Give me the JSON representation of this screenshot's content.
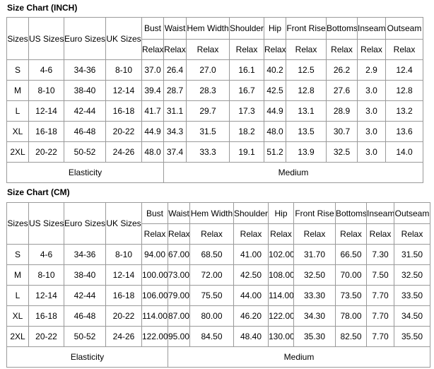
{
  "tables": [
    {
      "title": "Size Chart (INCH)",
      "headers": [
        "Sizes",
        "US Sizes",
        "Euro Sizes",
        "UK Sizes"
      ],
      "measures": [
        "Bust",
        "Waist",
        "Hem Width",
        "Shoulder",
        "Hip",
        "Front Rise",
        "Bottoms",
        "Inseam",
        "Outseam"
      ],
      "subheaders": [
        "Relax",
        "Relax",
        "Relax",
        "Relax",
        "Relax",
        "Relax",
        "Relax",
        "Relax",
        "Relax"
      ],
      "rows": [
        [
          "S",
          "4-6",
          "34-36",
          "8-10",
          "37.0",
          "26.4",
          "27.0",
          "16.1",
          "40.2",
          "12.5",
          "26.2",
          "2.9",
          "12.4"
        ],
        [
          "M",
          "8-10",
          "38-40",
          "12-14",
          "39.4",
          "28.7",
          "28.3",
          "16.7",
          "42.5",
          "12.8",
          "27.6",
          "3.0",
          "12.8"
        ],
        [
          "L",
          "12-14",
          "42-44",
          "16-18",
          "41.7",
          "31.1",
          "29.7",
          "17.3",
          "44.9",
          "13.1",
          "28.9",
          "3.0",
          "13.2"
        ],
        [
          "XL",
          "16-18",
          "46-48",
          "20-22",
          "44.9",
          "34.3",
          "31.5",
          "18.2",
          "48.0",
          "13.5",
          "30.7",
          "3.0",
          "13.6"
        ],
        [
          "2XL",
          "20-22",
          "50-52",
          "24-26",
          "48.0",
          "37.4",
          "33.3",
          "19.1",
          "51.2",
          "13.9",
          "32.5",
          "3.0",
          "14.0"
        ]
      ],
      "footer": [
        "Elasticity",
        "Medium"
      ]
    },
    {
      "title": "Size Chart (CM)",
      "headers": [
        "Sizes",
        "US Sizes",
        "Euro Sizes",
        "UK Sizes"
      ],
      "measures": [
        "Bust",
        "Waist",
        "Hem Width",
        "Shoulder",
        "Hip",
        "Front Rise",
        "Bottoms",
        "Inseam",
        "Outseam"
      ],
      "subheaders": [
        "Relax",
        "Relax",
        "Relax",
        "Relax",
        "Relax",
        "Relax",
        "Relax",
        "Relax",
        "Relax"
      ],
      "rows": [
        [
          "S",
          "4-6",
          "34-36",
          "8-10",
          "94.00",
          "67.00",
          "68.50",
          "41.00",
          "102.00",
          "31.70",
          "66.50",
          "7.30",
          "31.50"
        ],
        [
          "M",
          "8-10",
          "38-40",
          "12-14",
          "100.00",
          "73.00",
          "72.00",
          "42.50",
          "108.00",
          "32.50",
          "70.00",
          "7.50",
          "32.50"
        ],
        [
          "L",
          "12-14",
          "42-44",
          "16-18",
          "106.00",
          "79.00",
          "75.50",
          "44.00",
          "114.00",
          "33.30",
          "73.50",
          "7.70",
          "33.50"
        ],
        [
          "XL",
          "16-18",
          "46-48",
          "20-22",
          "114.00",
          "87.00",
          "80.00",
          "46.20",
          "122.00",
          "34.30",
          "78.00",
          "7.70",
          "34.50"
        ],
        [
          "2XL",
          "20-22",
          "50-52",
          "24-26",
          "122.00",
          "95.00",
          "84.50",
          "48.40",
          "130.00",
          "35.30",
          "82.50",
          "7.70",
          "35.50"
        ]
      ],
      "footer": [
        "Elasticity",
        "Medium"
      ]
    }
  ]
}
